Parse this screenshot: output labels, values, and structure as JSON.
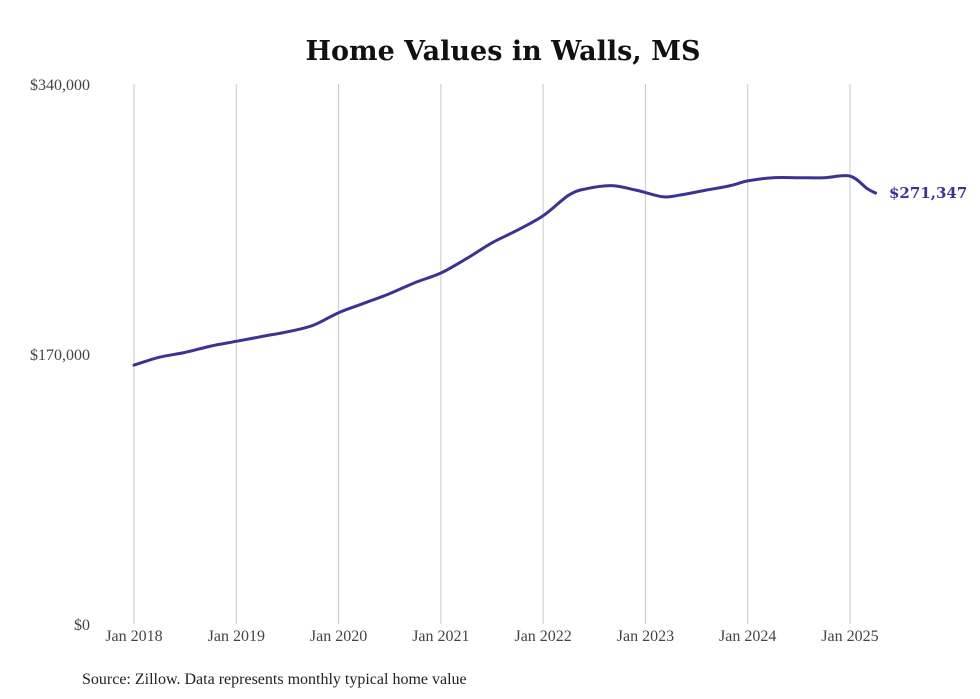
{
  "chart_data": {
    "type": "line",
    "title": "Home Values in Walls, MS",
    "source": "Source: Zillow. Data represents monthly typical home value",
    "y_ticks": [
      {
        "value": 340000,
        "label": "$340,000"
      },
      {
        "value": 170000,
        "label": "$170,000"
      },
      {
        "value": 0,
        "label": "$0"
      }
    ],
    "x_ticks": [
      {
        "value": 2018.0,
        "label": "Jan 2018"
      },
      {
        "value": 2019.0,
        "label": "Jan 2019"
      },
      {
        "value": 2020.0,
        "label": "Jan 2020"
      },
      {
        "value": 2021.0,
        "label": "Jan 2021"
      },
      {
        "value": 2022.0,
        "label": "Jan 2022"
      },
      {
        "value": 2023.0,
        "label": "Jan 2023"
      },
      {
        "value": 2024.0,
        "label": "Jan 2024"
      },
      {
        "value": 2025.0,
        "label": "Jan 2025"
      }
    ],
    "xlim": [
      2018.0,
      2025.25
    ],
    "ylim": [
      0,
      340000
    ],
    "grid": "vertical",
    "line_color": "#3a3394",
    "end_label": "$271,347",
    "series": [
      {
        "x": [
          2018.0,
          2018.25,
          2018.5,
          2018.75,
          2019.0,
          2019.25,
          2019.5,
          2019.75,
          2020.0,
          2020.25,
          2020.5,
          2020.75,
          2021.0,
          2021.25,
          2021.5,
          2021.75,
          2022.0,
          2022.25,
          2022.42,
          2022.67,
          2022.92,
          2023.17,
          2023.33,
          2023.58,
          2023.83,
          2024.0,
          2024.25,
          2024.5,
          2024.75,
          2025.0,
          2025.17,
          2025.25
        ],
        "y": [
          163000,
          168000,
          171000,
          175000,
          178000,
          181000,
          184000,
          188000,
          196000,
          202000,
          208000,
          215000,
          221000,
          230000,
          240000,
          248000,
          257000,
          270000,
          274000,
          276000,
          273000,
          269000,
          270000,
          273000,
          276000,
          279000,
          281000,
          281000,
          281000,
          282000,
          274000,
          271347
        ]
      }
    ]
  }
}
